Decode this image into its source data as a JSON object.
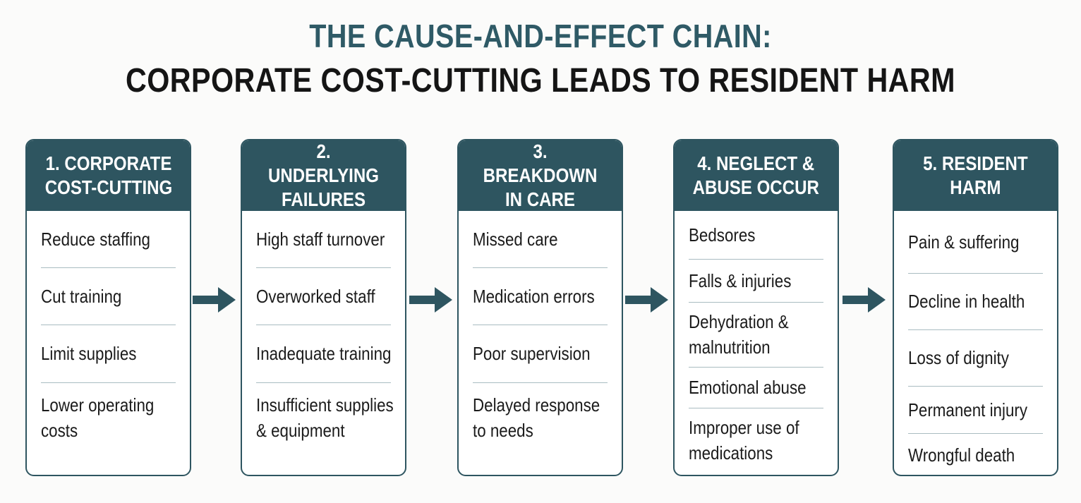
{
  "colors": {
    "accent": "#2e5560",
    "title_accent": "#2f5a66",
    "title_dark": "#151515",
    "divider": "#a9bcc1"
  },
  "title": {
    "line1": "THE CAUSE-AND-EFFECT CHAIN:",
    "line2": "CORPORATE COST-CUTTING LEADS TO RESIDENT HARM"
  },
  "stages": [
    {
      "header_lines": [
        "1. CORPORATE",
        "COST-CUTTING"
      ],
      "items": [
        [
          "Reduce staffing"
        ],
        [
          "Cut training"
        ],
        [
          "Limit supplies"
        ],
        [
          "Lower operating",
          "costs"
        ]
      ]
    },
    {
      "header_lines": [
        "2. UNDERLYING",
        "FAILURES"
      ],
      "items": [
        [
          "High staff turnover"
        ],
        [
          "Overworked staff"
        ],
        [
          "Inadequate training"
        ],
        [
          "Insufficient supplies",
          "& equipment"
        ]
      ]
    },
    {
      "header_lines": [
        "3. BREAKDOWN",
        "IN CARE"
      ],
      "items": [
        [
          "Missed care"
        ],
        [
          "Medication errors"
        ],
        [
          "Poor supervision"
        ],
        [
          "Delayed response",
          "to needs"
        ]
      ]
    },
    {
      "header_lines": [
        "4. NEGLECT &",
        "ABUSE OCCUR"
      ],
      "items": [
        [
          "Bedsores"
        ],
        [
          "Falls & injuries"
        ],
        [
          "Dehydration &",
          "malnutrition"
        ],
        [
          "Emotional abuse"
        ],
        [
          "Improper use of",
          "medications"
        ]
      ]
    },
    {
      "header_lines": [
        "5. RESIDENT",
        "HARM"
      ],
      "items": [
        [
          "Pain & suffering"
        ],
        [
          "Decline in health"
        ],
        [
          "Loss of dignity"
        ],
        [
          "Permanent injury"
        ],
        [
          "Wrongful death"
        ]
      ]
    }
  ]
}
